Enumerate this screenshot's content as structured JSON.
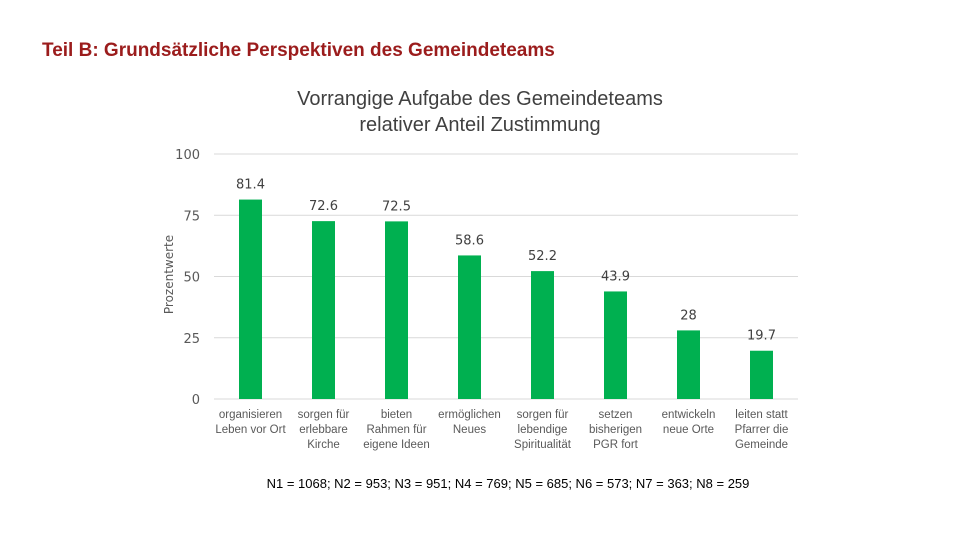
{
  "slide_title": "Teil B: Grundsätzliche Perspektiven des Gemeindeteams",
  "footnote": "N1 = 1068; N2 = 953; N3 = 951; N4 = 769; N5 = 685; N6 = 573; N7 = 363; N8 = 259",
  "chart_data": {
    "type": "bar",
    "title": [
      "Vorrangige Aufgabe des Gemeindeteams",
      "relativer Anteil Zustimmung"
    ],
    "ylabel": "Prozentwerte",
    "xlabel": "",
    "ylim": [
      0,
      100
    ],
    "yticks": [
      0,
      25,
      50,
      75,
      100
    ],
    "grid": true,
    "legend": "none",
    "bar_color": "#00b050",
    "categories": [
      [
        "organisieren",
        "Leben vor Ort"
      ],
      [
        "sorgen für",
        "erlebbare",
        "Kirche"
      ],
      [
        "bieten",
        "Rahmen für",
        "eigene Ideen"
      ],
      [
        "ermöglichen",
        "Neues"
      ],
      [
        "sorgen für",
        "lebendige",
        "Spiritualität"
      ],
      [
        "setzen",
        "bisherigen",
        "PGR fort"
      ],
      [
        "entwickeln",
        "neue Orte"
      ],
      [
        "leiten statt",
        "Pfarrer die",
        "Gemeinde"
      ]
    ],
    "values": [
      81.4,
      72.6,
      72.5,
      58.6,
      52.2,
      43.9,
      28,
      19.7
    ],
    "data_labels": [
      "81.4",
      "72.6",
      "72.5",
      "58.6",
      "52.2",
      "43.9",
      "28",
      "19.7"
    ]
  }
}
